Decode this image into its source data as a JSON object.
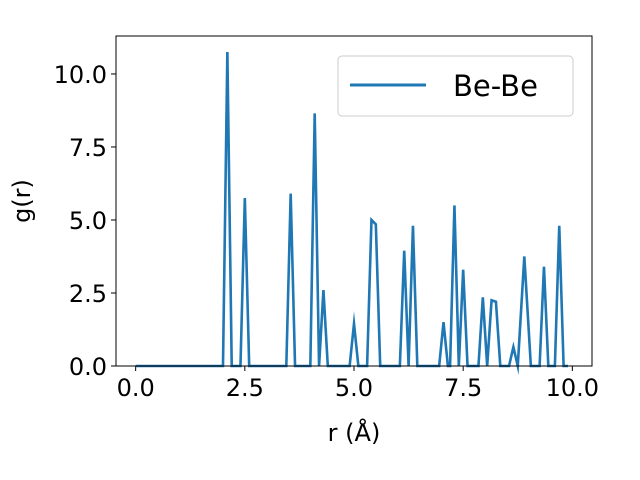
{
  "chart_data": {
    "type": "line",
    "title": "",
    "xlabel": "r (Å)",
    "ylabel": "g(r)",
    "xlim": [
      -0.45,
      10.45
    ],
    "ylim": [
      0,
      11.3
    ],
    "xticks": [
      0.0,
      2.5,
      5.0,
      7.5,
      10.0
    ],
    "xtick_labels": [
      "0.0",
      "2.5",
      "5.0",
      "7.5",
      "10.0"
    ],
    "yticks": [
      0.0,
      2.5,
      5.0,
      7.5,
      10.0
    ],
    "ytick_labels": [
      "0.0",
      "2.5",
      "5.0",
      "7.5",
      "10.0"
    ],
    "grid": false,
    "legend_position": "upper right",
    "colors": {
      "series": "#1f77b4"
    },
    "series": [
      {
        "name": "Be-Be",
        "x": [
          0.0,
          2.0,
          2.1,
          2.2,
          2.4,
          2.5,
          2.6,
          3.45,
          3.55,
          3.65,
          4.0,
          4.1,
          4.2,
          4.3,
          4.4,
          4.9,
          5.0,
          5.1,
          5.3,
          5.4,
          5.5,
          5.6,
          6.05,
          6.15,
          6.25,
          6.35,
          6.45,
          6.55,
          6.95,
          7.05,
          7.15,
          7.2,
          7.3,
          7.4,
          7.5,
          7.6,
          7.85,
          7.95,
          8.05,
          8.15,
          8.25,
          8.35,
          8.55,
          8.65,
          8.75,
          8.9,
          9.05,
          9.25,
          9.35,
          9.45,
          9.6,
          9.7,
          9.8,
          9.9
        ],
        "y": [
          0.0,
          0.0,
          10.75,
          0.0,
          0.0,
          5.75,
          0.0,
          0.0,
          5.9,
          0.0,
          0.0,
          8.65,
          0.0,
          2.6,
          0.0,
          0.0,
          1.45,
          0.0,
          0.0,
          5.0,
          4.85,
          0.0,
          0.0,
          3.95,
          0.0,
          4.8,
          0.0,
          0.0,
          0.0,
          1.5,
          0.0,
          0.0,
          5.5,
          0.0,
          3.3,
          0.0,
          0.0,
          2.35,
          0.0,
          2.25,
          2.2,
          0.0,
          0.0,
          0.65,
          0.0,
          3.75,
          0.0,
          0.0,
          3.4,
          0.0,
          0.0,
          4.8,
          0.0,
          0.0
        ]
      }
    ]
  }
}
